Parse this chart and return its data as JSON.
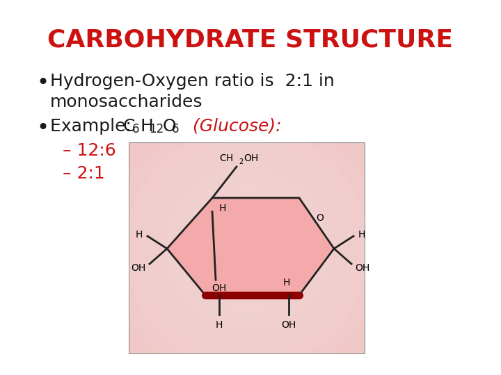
{
  "title": "CARBOHYDRATE STRUCTURE",
  "title_color": "#CC1111",
  "title_fontsize": 26,
  "bg_color": "#FFFFFF",
  "bullet1_line1": "Hydrogen-Oxygen ratio is  2:1 in",
  "bullet1_line2": "monosaccharides",
  "text_color": "#1a1a1a",
  "red_color": "#CC1111",
  "bullet_fontsize": 18,
  "sub_bullet1": "– 12:6",
  "sub_bullet2": "– 2:1",
  "sub_bullet_fontsize": 18,
  "ring_face_color": "#f4a0a0",
  "ring_edge_color": "#222222",
  "ring_bottom_color": "#8B0000",
  "bg_box_color": "#f5d5d5",
  "bg_outer_color": "#f0c0c0"
}
